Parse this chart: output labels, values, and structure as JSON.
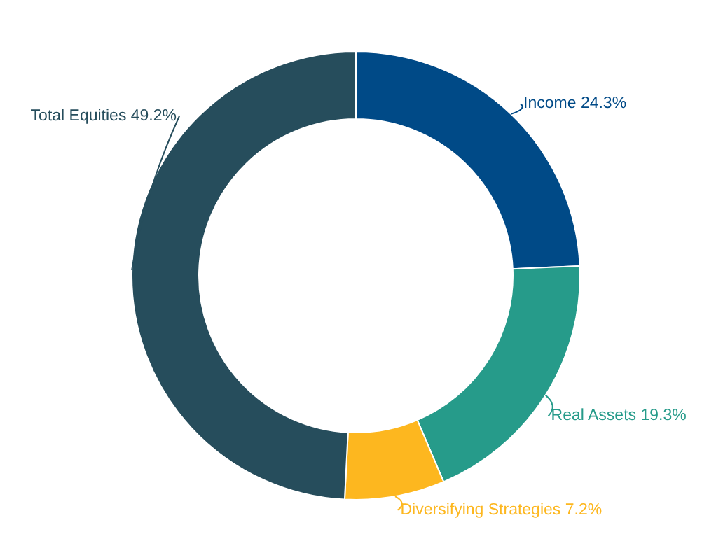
{
  "chart_data": {
    "type": "donut",
    "categories": [
      "Income",
      "Real Assets",
      "Diversifying Strategies",
      "Total Equities"
    ],
    "values": [
      24.3,
      19.3,
      7.2,
      49.2
    ],
    "value_labels": [
      "24.3%",
      "19.3%",
      "7.2%",
      "49.2%"
    ],
    "colors": [
      "#004a87",
      "#269b8a",
      "#fdb71f",
      "#264d5c"
    ],
    "legend": false
  }
}
